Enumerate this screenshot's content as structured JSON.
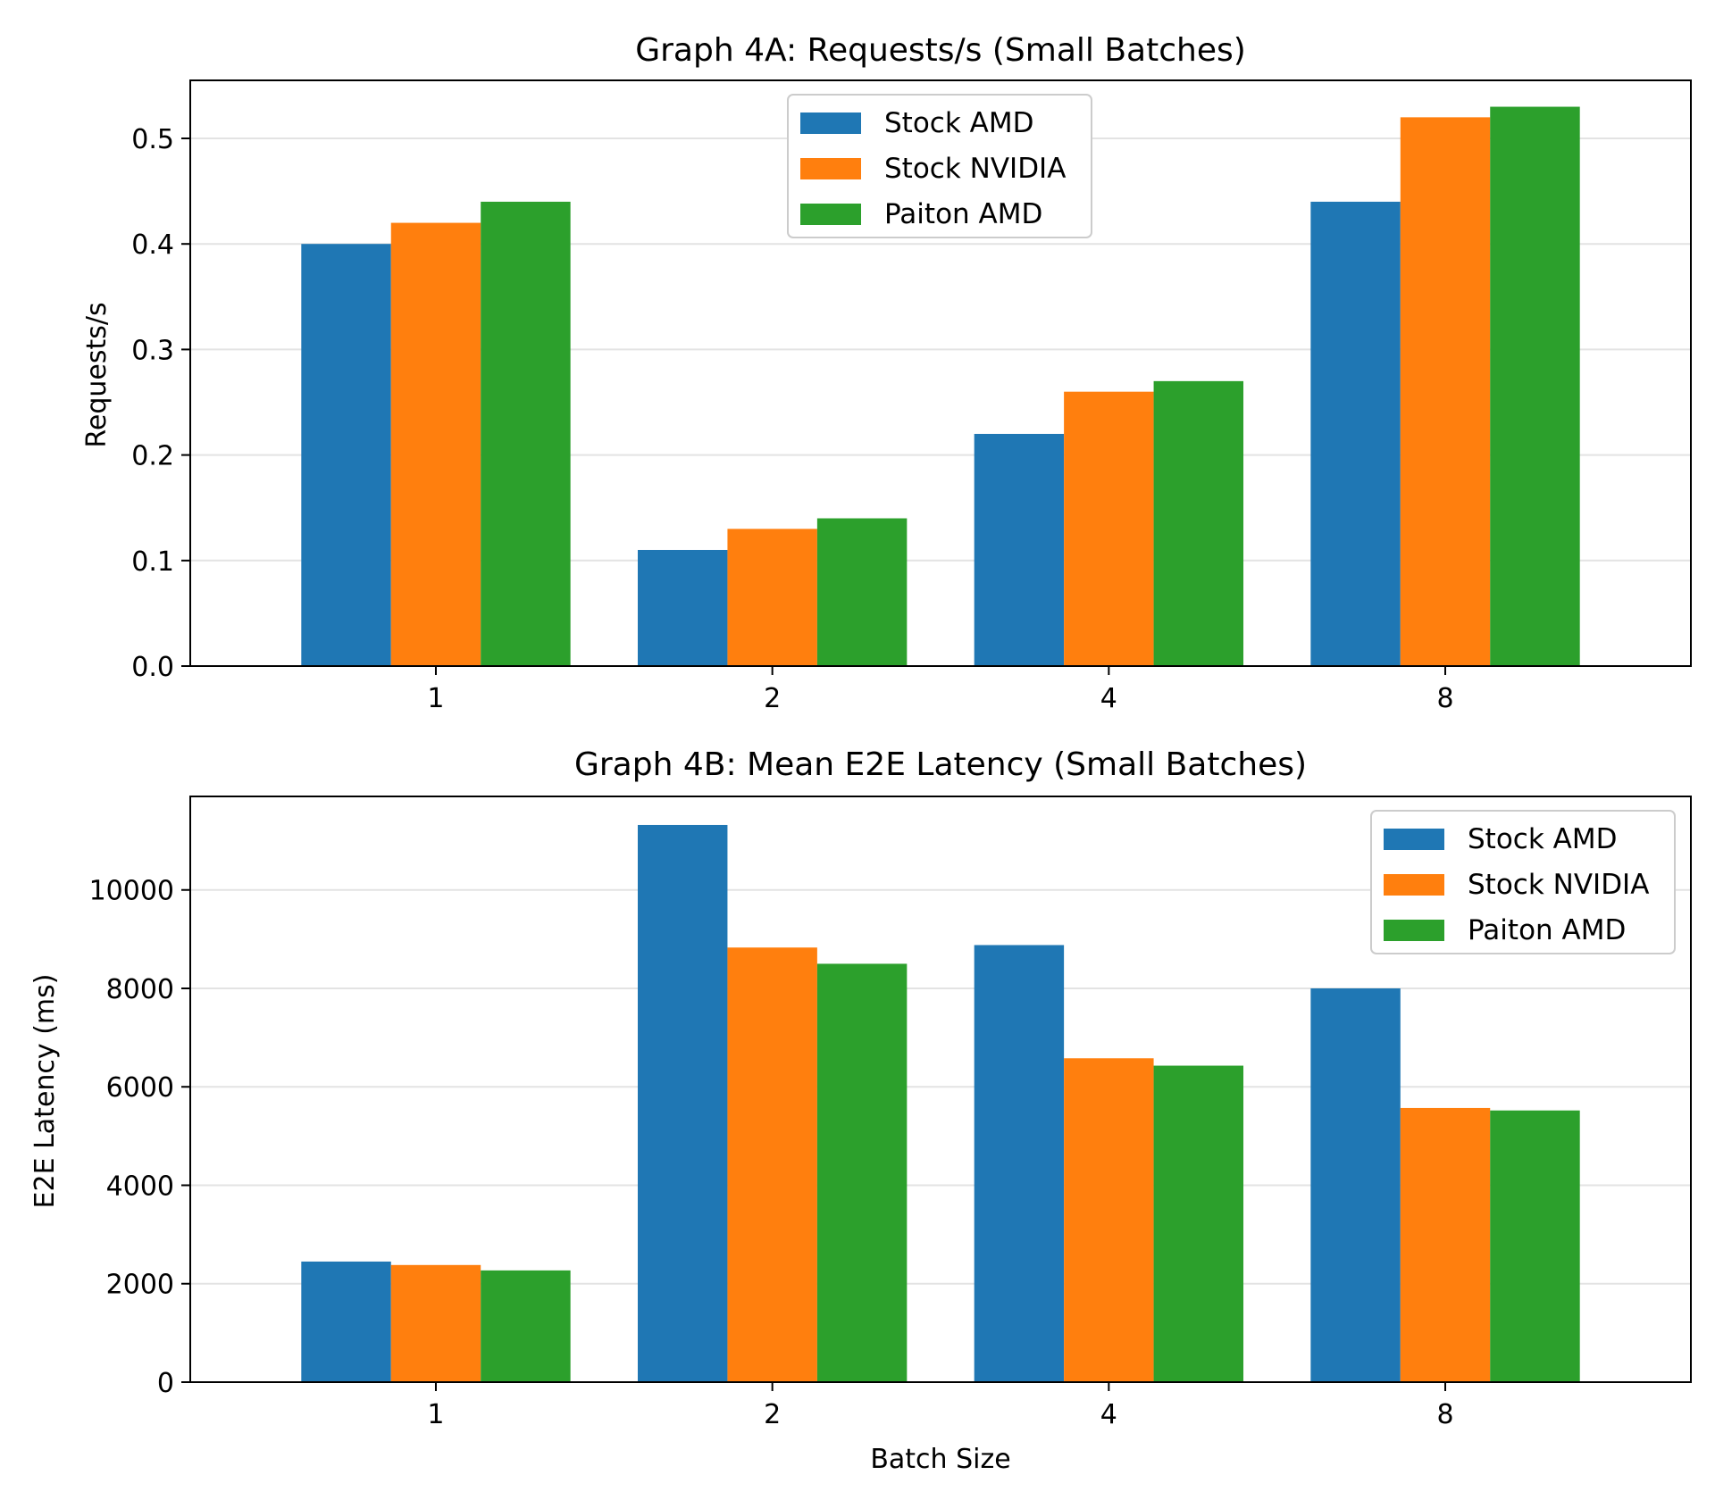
{
  "colors": {
    "stock_amd": "#1f77b4",
    "stock_nvidia": "#ff7f0e",
    "paiton_amd": "#2ca02c"
  },
  "chart_data": [
    {
      "type": "bar",
      "title": "Graph 4A: Requests/s (Small Batches)",
      "xlabel": "",
      "ylabel": "Requests/s",
      "categories": [
        "1",
        "2",
        "4",
        "8"
      ],
      "ylim": [
        0,
        0.555
      ],
      "yticks": [
        0.0,
        0.1,
        0.2,
        0.3,
        0.4,
        0.5
      ],
      "ytick_labels": [
        "0.0",
        "0.1",
        "0.2",
        "0.3",
        "0.4",
        "0.5"
      ],
      "grid": "y",
      "legend_position": "upper-center",
      "series": [
        {
          "name": "Stock AMD",
          "color_key": "stock_amd",
          "values": [
            0.4,
            0.11,
            0.22,
            0.44
          ]
        },
        {
          "name": "Stock NVIDIA",
          "color_key": "stock_nvidia",
          "values": [
            0.42,
            0.13,
            0.26,
            0.52
          ]
        },
        {
          "name": "Paiton AMD",
          "color_key": "paiton_amd",
          "values": [
            0.44,
            0.14,
            0.27,
            0.53
          ]
        }
      ]
    },
    {
      "type": "bar",
      "title": "Graph 4B: Mean E2E Latency (Small Batches)",
      "xlabel": "Batch Size",
      "ylabel": "E2E Latency (ms)",
      "categories": [
        "1",
        "2",
        "4",
        "8"
      ],
      "ylim": [
        0,
        11900
      ],
      "yticks": [
        0,
        2000,
        4000,
        6000,
        8000,
        10000
      ],
      "ytick_labels": [
        "0",
        "2000",
        "4000",
        "6000",
        "8000",
        "10000"
      ],
      "grid": "y",
      "legend_position": "upper-right",
      "series": [
        {
          "name": "Stock AMD",
          "color_key": "stock_amd",
          "values": [
            2450,
            11320,
            8880,
            8000
          ]
        },
        {
          "name": "Stock NVIDIA",
          "color_key": "stock_nvidia",
          "values": [
            2380,
            8830,
            6580,
            5570
          ]
        },
        {
          "name": "Paiton AMD",
          "color_key": "paiton_amd",
          "values": [
            2270,
            8500,
            6430,
            5520
          ]
        }
      ]
    }
  ]
}
